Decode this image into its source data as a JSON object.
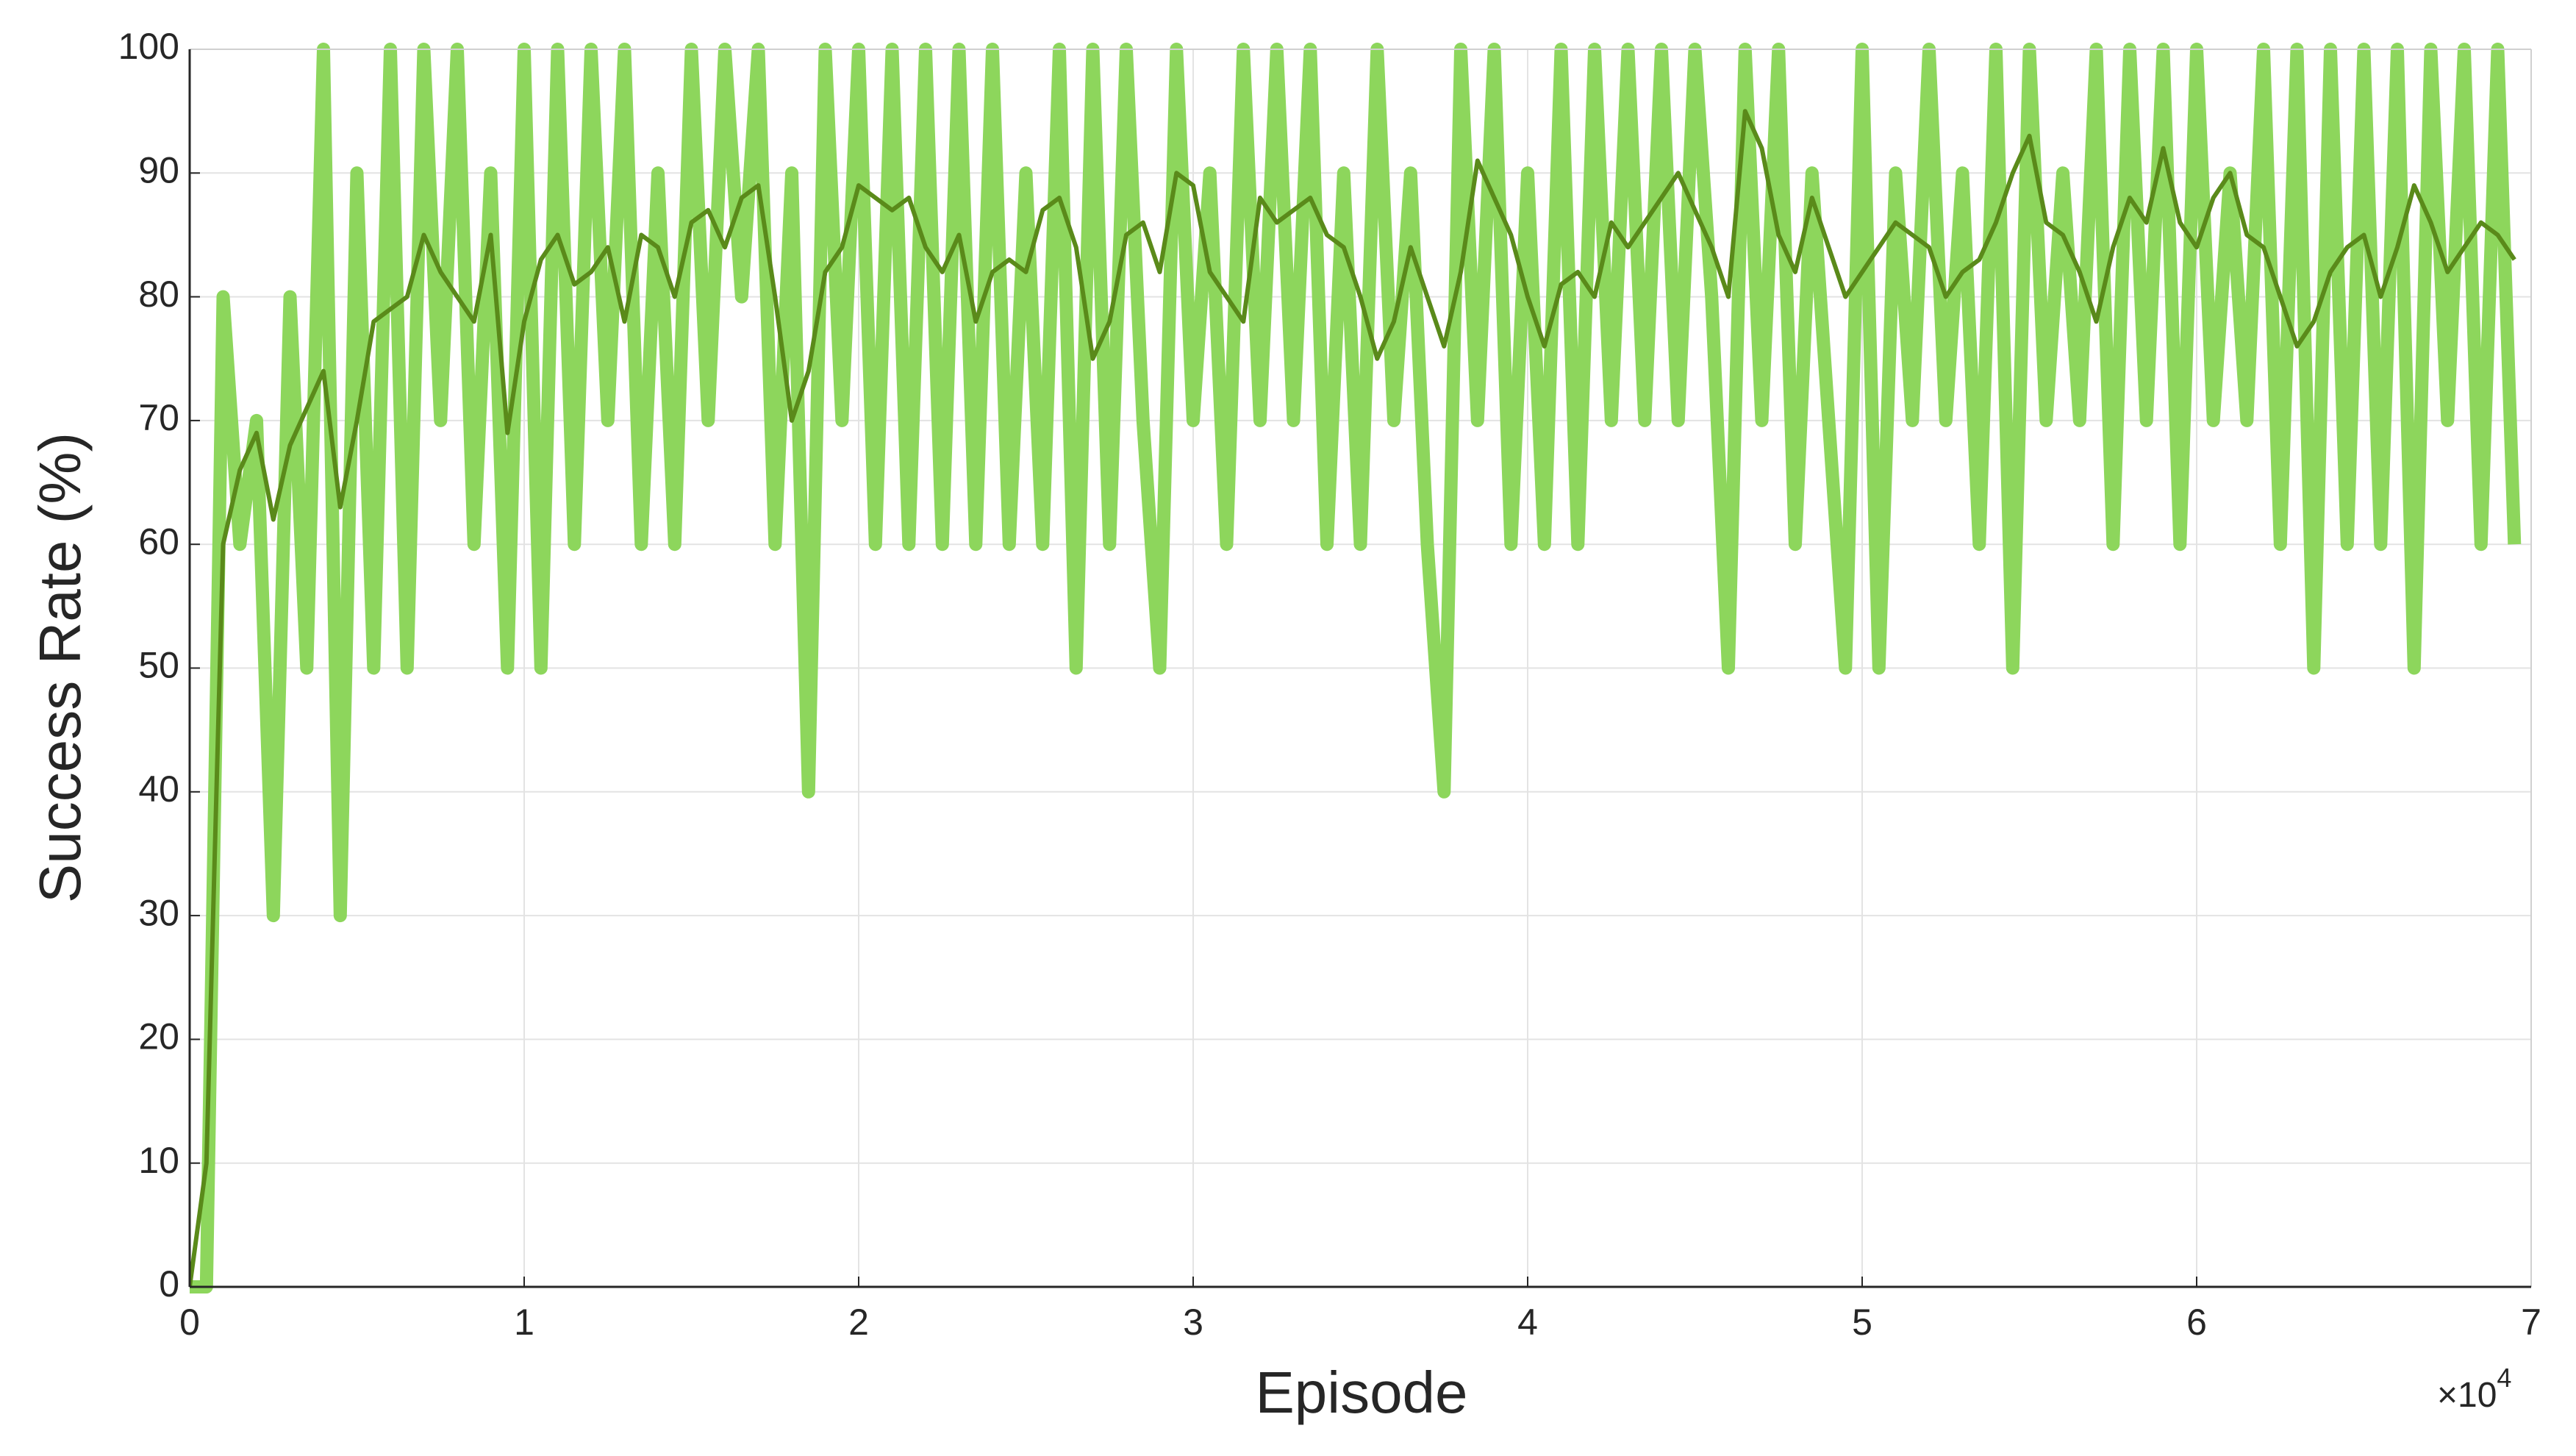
{
  "chart_data": {
    "type": "line",
    "x_label": "Episode",
    "y_label": "Success Rate (%)",
    "x_multiplier": "×10",
    "x_multiplier_exponent": "4",
    "xlim": [
      0,
      7
    ],
    "xticks": [
      0,
      1,
      2,
      3,
      4,
      5,
      6,
      7
    ],
    "ylim": [
      0,
      100
    ],
    "yticks": [
      0,
      10,
      20,
      30,
      40,
      50,
      60,
      70,
      80,
      90,
      100
    ],
    "grid": true,
    "x": [
      0,
      0.05,
      0.1,
      0.15,
      0.2,
      0.25,
      0.3,
      0.35,
      0.4,
      0.45,
      0.5,
      0.55,
      0.6,
      0.65,
      0.7,
      0.75,
      0.8,
      0.85,
      0.9,
      0.95,
      1,
      1.05,
      1.1,
      1.15,
      1.2,
      1.25,
      1.3,
      1.35,
      1.4,
      1.45,
      1.5,
      1.55,
      1.6,
      1.65,
      1.7,
      1.75,
      1.8,
      1.85,
      1.9,
      1.95,
      2,
      2.05,
      2.1,
      2.15,
      2.2,
      2.25,
      2.3,
      2.35,
      2.4,
      2.45,
      2.5,
      2.55,
      2.6,
      2.65,
      2.7,
      2.75,
      2.8,
      2.85,
      2.9,
      2.95,
      3,
      3.05,
      3.1,
      3.15,
      3.2,
      3.25,
      3.3,
      3.35,
      3.4,
      3.45,
      3.5,
      3.55,
      3.6,
      3.65,
      3.7,
      3.75,
      3.8,
      3.85,
      3.9,
      3.95,
      4,
      4.05,
      4.1,
      4.15,
      4.2,
      4.25,
      4.3,
      4.35,
      4.4,
      4.45,
      4.5,
      4.55,
      4.6,
      4.65,
      4.7,
      4.75,
      4.8,
      4.85,
      4.9,
      4.95,
      5,
      5.05,
      5.1,
      5.15,
      5.2,
      5.25,
      5.3,
      5.35,
      5.4,
      5.45,
      5.5,
      5.55,
      5.6,
      5.65,
      5.7,
      5.75,
      5.8,
      5.85,
      5.9,
      5.95,
      6,
      6.05,
      6.1,
      6.15,
      6.2,
      6.25,
      6.3,
      6.35,
      6.4,
      6.45,
      6.5,
      6.55,
      6.6,
      6.65,
      6.7,
      6.75,
      6.8,
      6.85,
      6.9,
      6.95
    ],
    "series": [
      {
        "color": "#8dd65c",
        "width": 18,
        "values": [
          0,
          0,
          80,
          60,
          70,
          30,
          80,
          50,
          100,
          30,
          90,
          50,
          100,
          50,
          100,
          70,
          100,
          60,
          90,
          50,
          100,
          50,
          100,
          60,
          100,
          70,
          100,
          60,
          90,
          60,
          100,
          70,
          100,
          80,
          100,
          60,
          90,
          40,
          100,
          70,
          100,
          60,
          100,
          60,
          100,
          60,
          100,
          60,
          100,
          60,
          90,
          60,
          100,
          50,
          100,
          60,
          100,
          70,
          50,
          100,
          70,
          90,
          60,
          100,
          70,
          100,
          70,
          100,
          60,
          90,
          60,
          100,
          70,
          90,
          60,
          40,
          100,
          70,
          100,
          60,
          90,
          60,
          100,
          60,
          100,
          70,
          100,
          70,
          100,
          70,
          100,
          80,
          50,
          100,
          70,
          100,
          60,
          90,
          70,
          50,
          100,
          50,
          90,
          70,
          100,
          70,
          90,
          60,
          100,
          50,
          100,
          70,
          90,
          70,
          100,
          60,
          100,
          70,
          100,
          60,
          100,
          70,
          90,
          70,
          100,
          60,
          100,
          50,
          100,
          60,
          100,
          60,
          100,
          50,
          100,
          70,
          100,
          60,
          100,
          60
        ]
      },
      {
        "color": "#5a8a1a",
        "width": 6,
        "values": [
          0,
          10,
          60,
          66,
          69,
          62,
          68,
          71,
          74,
          63,
          70,
          78,
          79,
          80,
          85,
          82,
          80,
          78,
          85,
          69,
          78,
          83,
          85,
          81,
          82,
          84,
          78,
          85,
          84,
          80,
          86,
          87,
          84,
          88,
          89,
          80,
          70,
          74,
          82,
          84,
          89,
          88,
          87,
          88,
          84,
          82,
          85,
          78,
          82,
          83,
          82,
          87,
          88,
          84,
          75,
          78,
          85,
          86,
          82,
          90,
          89,
          82,
          80,
          78,
          88,
          86,
          87,
          88,
          85,
          84,
          80,
          75,
          78,
          84,
          80,
          76,
          82,
          91,
          88,
          85,
          80,
          76,
          81,
          82,
          80,
          86,
          84,
          86,
          88,
          90,
          87,
          84,
          80,
          95,
          92,
          85,
          82,
          88,
          84,
          80,
          82,
          84,
          86,
          85,
          84,
          80,
          82,
          83,
          86,
          90,
          93,
          86,
          85,
          82,
          78,
          84,
          88,
          86,
          92,
          86,
          84,
          88,
          90,
          85,
          84,
          80,
          76,
          78,
          82,
          84,
          85,
          80,
          84,
          89,
          86,
          82,
          84,
          86,
          85,
          83
        ]
      }
    ]
  }
}
